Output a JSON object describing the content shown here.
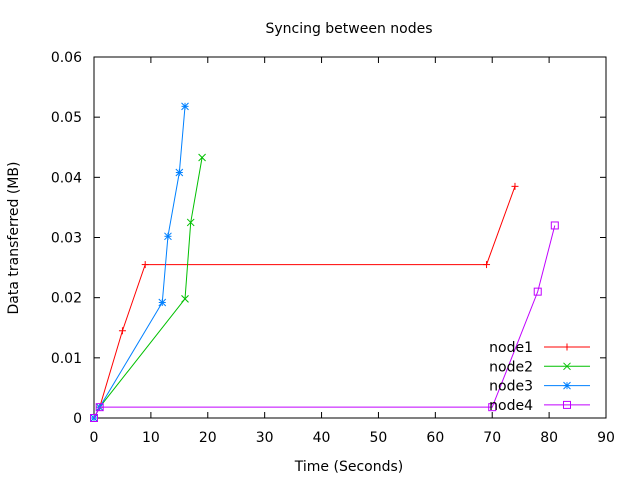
{
  "chart_data": {
    "type": "line",
    "title": "Syncing between nodes",
    "xlabel": "Time (Seconds)",
    "ylabel": "Data transferred (MB)",
    "xlim": [
      0,
      90
    ],
    "ylim": [
      0,
      0.06
    ],
    "xticks": [
      "0",
      "10",
      "20",
      "30",
      "40",
      "50",
      "60",
      "70",
      "80",
      "90"
    ],
    "yticks": [
      "0",
      "0.01",
      "0.02",
      "0.03",
      "0.04",
      "0.05",
      "0.06"
    ],
    "xtick_values": [
      0,
      10,
      20,
      30,
      40,
      50,
      60,
      70,
      80,
      90
    ],
    "ytick_values": [
      0,
      0.01,
      0.02,
      0.03,
      0.04,
      0.05,
      0.06
    ],
    "grid": false,
    "legend_position": "bottom-right",
    "series": [
      {
        "name": "node1",
        "color": "#ff0000",
        "marker": "plus",
        "points": [
          [
            0,
            0
          ],
          [
            1,
            0.0018
          ],
          [
            5,
            0.0145
          ],
          [
            9,
            0.0255
          ],
          [
            69,
            0.0255
          ],
          [
            74,
            0.0385
          ]
        ]
      },
      {
        "name": "node2",
        "color": "#00c000",
        "marker": "cross",
        "points": [
          [
            0,
            0
          ],
          [
            1,
            0.0018
          ],
          [
            16,
            0.0198
          ],
          [
            17,
            0.0325
          ],
          [
            19,
            0.0433
          ]
        ]
      },
      {
        "name": "node3",
        "color": "#0080ff",
        "marker": "star",
        "points": [
          [
            0,
            0
          ],
          [
            1,
            0.0018
          ],
          [
            12,
            0.0192
          ],
          [
            13,
            0.0302
          ],
          [
            15,
            0.0408
          ],
          [
            16,
            0.0518
          ]
        ]
      },
      {
        "name": "node4",
        "color": "#c000ff",
        "marker": "square",
        "points": [
          [
            0,
            0
          ],
          [
            1,
            0.0018
          ],
          [
            70,
            0.0018
          ],
          [
            78,
            0.021
          ],
          [
            81,
            0.032
          ]
        ]
      }
    ]
  }
}
